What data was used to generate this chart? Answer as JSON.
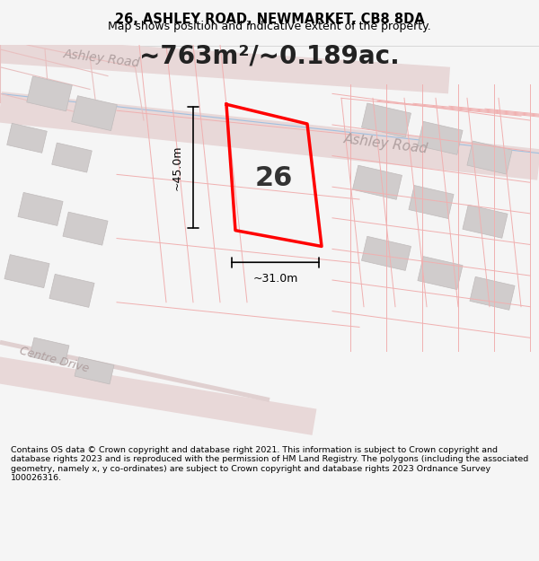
{
  "title_line1": "26, ASHLEY ROAD, NEWMARKET, CB8 8DA",
  "title_line2": "Map shows position and indicative extent of the property.",
  "area_text": "~763m²/~0.189ac.",
  "label_26": "26",
  "dim_vertical": "~45.0m",
  "dim_horizontal": "~31.0m",
  "road_label_1": "Ashley Road",
  "road_label_2": "Ashley Road",
  "road_label_3": "Centre Drive",
  "copyright_text": "Contains OS data © Crown copyright and database right 2021. This information is subject to Crown copyright and database rights 2023 and is reproduced with the permission of HM Land Registry. The polygons (including the associated geometry, namely x, y co-ordinates) are subject to Crown copyright and database rights 2023 Ordnance Survey 100026316.",
  "bg_color": "#f5f5f5",
  "map_bg": "#f0eeee",
  "road_color": "#e8d8d8",
  "road_fill": "#e8d8d8",
  "plot_outline_color": "#ff0000",
  "building_fill": "#d0cccc",
  "building_outline": "#c0bbbb",
  "road_line_color": "#c8b8b8",
  "road_text_color": "#b0a0a0",
  "dim_line_color": "#000000",
  "header_bg": "#ffffff",
  "footer_bg": "#ffffff"
}
